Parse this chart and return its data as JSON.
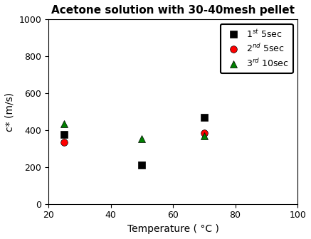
{
  "title": "Acetone solution with 30-40mesh pellet",
  "xlabel": "Temperature ( °C )",
  "ylabel": "c* (m/s)",
  "xlim": [
    20,
    100
  ],
  "ylim": [
    0,
    1000
  ],
  "xticks": [
    20,
    40,
    60,
    80,
    100
  ],
  "yticks": [
    0,
    200,
    400,
    600,
    800,
    1000
  ],
  "series": [
    {
      "label_main": "1",
      "label_sup": "st",
      "label_rest": " 5sec",
      "x": [
        25,
        50,
        70
      ],
      "y": [
        375,
        210,
        470
      ],
      "color": "black",
      "marker": "s",
      "markersize": 7
    },
    {
      "label_main": "2",
      "label_sup": "nd",
      "label_rest": " 5sec",
      "x": [
        25,
        70
      ],
      "y": [
        335,
        385
      ],
      "color": "red",
      "marker": "o",
      "markersize": 7
    },
    {
      "label_main": "3",
      "label_sup": "rd",
      "label_rest": " 10sec",
      "x": [
        25,
        50,
        70
      ],
      "y": [
        435,
        355,
        370
      ],
      "color": "green",
      "marker": "^",
      "markersize": 7
    }
  ],
  "background_color": "#ffffff",
  "title_fontsize": 11,
  "axis_label_fontsize": 10,
  "tick_fontsize": 9,
  "legend_fontsize": 9
}
